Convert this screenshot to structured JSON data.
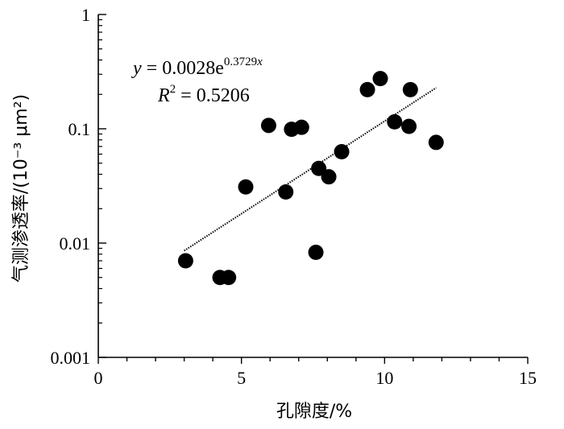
{
  "chart_data": {
    "type": "scatter",
    "xlabel": "孔隙度/%",
    "ylabel": "气测渗透率/(10⁻³ μm²)",
    "xlim": [
      0,
      15
    ],
    "ylim": [
      0.001,
      1
    ],
    "y_scale": "log",
    "x_ticks": [
      "0",
      "5",
      "10",
      "15"
    ],
    "y_ticks": [
      "0.001",
      "0.01",
      "0.1",
      "1"
    ],
    "grid": false,
    "points": [
      {
        "x": 3.05,
        "y": 0.007
      },
      {
        "x": 4.25,
        "y": 0.005
      },
      {
        "x": 4.55,
        "y": 0.005
      },
      {
        "x": 5.15,
        "y": 0.031
      },
      {
        "x": 5.95,
        "y": 0.107
      },
      {
        "x": 6.55,
        "y": 0.028
      },
      {
        "x": 6.75,
        "y": 0.099
      },
      {
        "x": 7.1,
        "y": 0.103
      },
      {
        "x": 7.6,
        "y": 0.0083
      },
      {
        "x": 7.7,
        "y": 0.045
      },
      {
        "x": 8.05,
        "y": 0.038
      },
      {
        "x": 8.5,
        "y": 0.063
      },
      {
        "x": 9.4,
        "y": 0.22
      },
      {
        "x": 9.85,
        "y": 0.275
      },
      {
        "x": 10.35,
        "y": 0.115
      },
      {
        "x": 10.85,
        "y": 0.105
      },
      {
        "x": 10.9,
        "y": 0.22
      },
      {
        "x": 11.8,
        "y": 0.076
      }
    ],
    "trendline": {
      "type": "exponential",
      "a": 0.0028,
      "b": 0.3729,
      "x_range": [
        3.0,
        11.8
      ]
    },
    "equation_text": {
      "y": "y",
      "eq": " = 0.0028e",
      "exp": "0.3729",
      "expvar": "x"
    },
    "r2_text": {
      "r": "R",
      "sup": "2",
      "val": " = 0.5206"
    }
  }
}
